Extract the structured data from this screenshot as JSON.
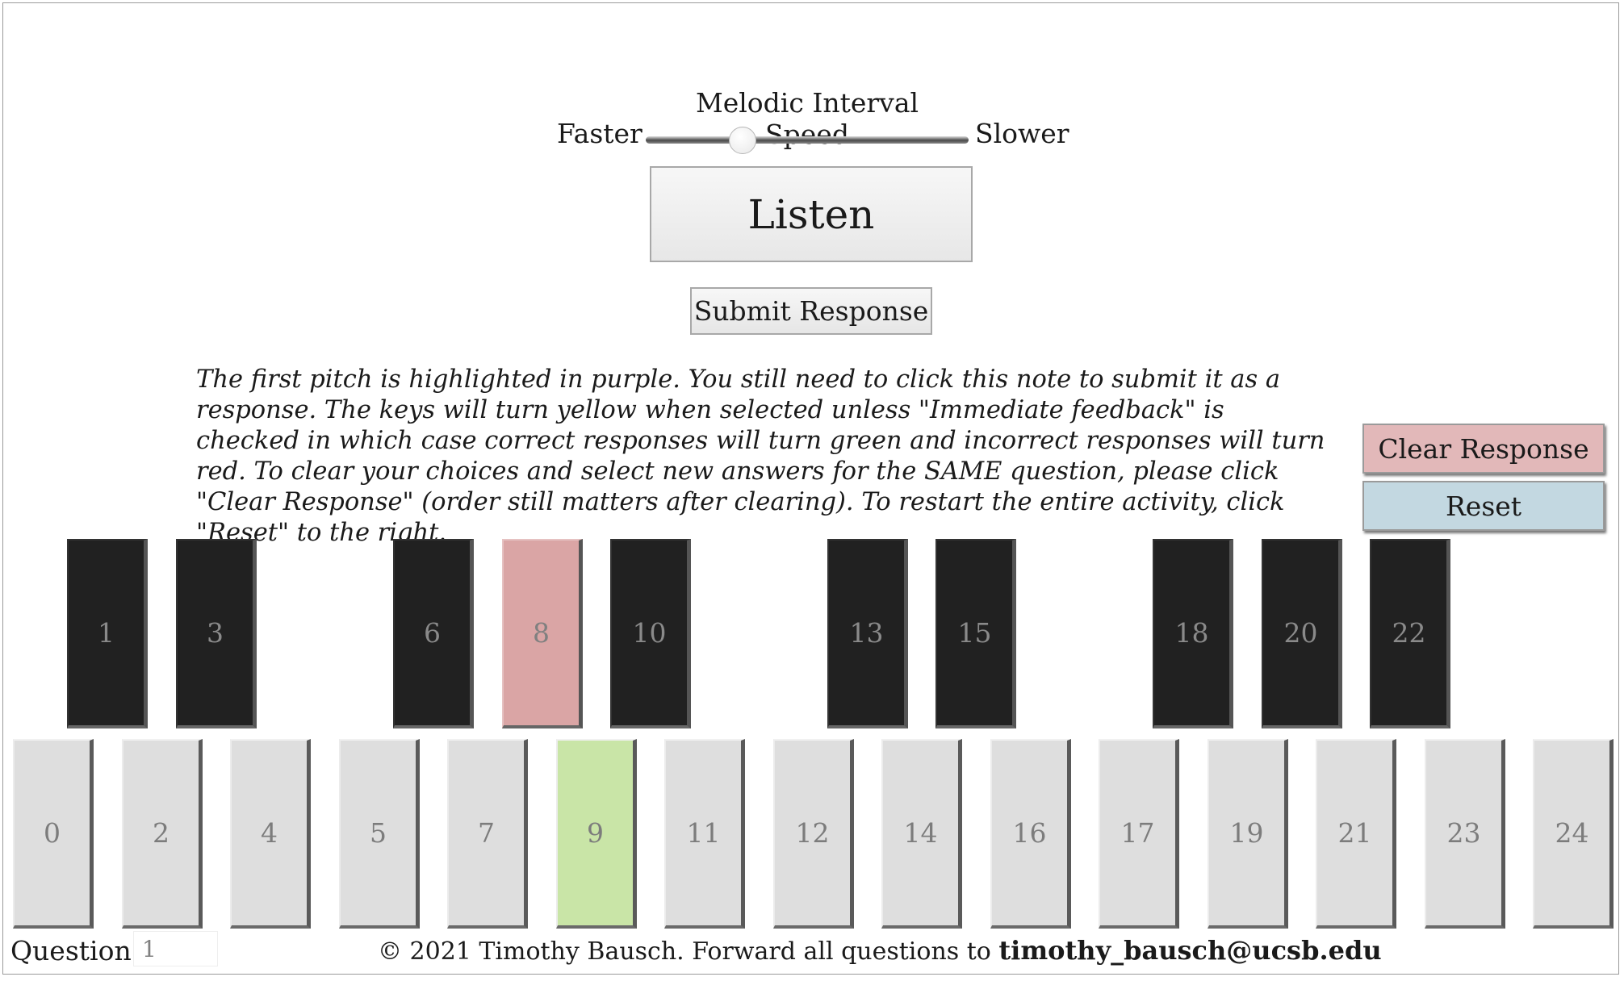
{
  "speed": {
    "title": "Melodic Interval Speed",
    "faster_label": "Faster",
    "slower_label": "Slower",
    "slider_value": 0.3
  },
  "buttons": {
    "listen": "Listen",
    "submit": "Submit Response",
    "clear": "Clear Response",
    "reset": "Reset"
  },
  "instructions": "The first pitch is highlighted in purple. You still need to click this note to submit it as a response. The keys will turn yellow when selected unless \"Immediate feedback\" is checked in which case correct responses will turn green and incorrect responses will turn red. To clear your choices and select new answers for the SAME question, please click \"Clear Response\" (order still matters after clearing). To restart the entire activity, click \"Reset\" to the right.",
  "keyboard": {
    "black_keys": [
      "1",
      "3",
      "6",
      "8",
      "10",
      "13",
      "15",
      "18",
      "20",
      "22"
    ],
    "white_keys": [
      "0",
      "2",
      "4",
      "5",
      "7",
      "9",
      "11",
      "12",
      "14",
      "16",
      "17",
      "19",
      "21",
      "23",
      "24"
    ],
    "highlighted_key": "8",
    "selected_key": "9",
    "colors": {
      "white": "#dedede",
      "black": "#212121",
      "highlight": "#daa5a5",
      "selected_correct": "#c9e5a7"
    }
  },
  "footer": {
    "question_label": "Question:",
    "question_value": "1",
    "copyright": "© 2021 Timothy Bausch. Forward all questions to ",
    "email": "timothy_bausch@ucsb.edu"
  }
}
